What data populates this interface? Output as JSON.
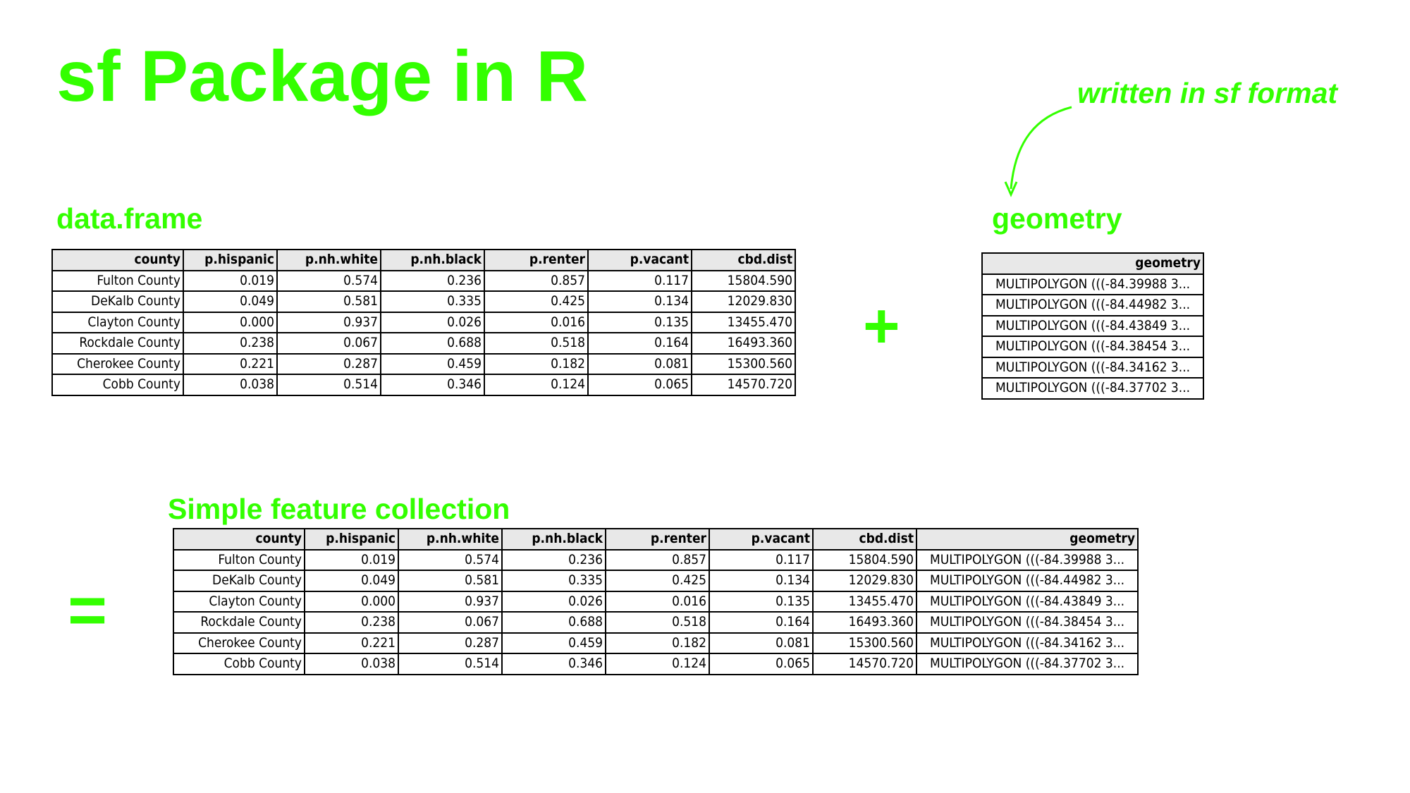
{
  "slide": {
    "title": "sf Package in R",
    "note": "written in sf format",
    "plus": "+",
    "equals": "=",
    "labels": {
      "dataframe": "data.frame",
      "geometry": "geometry",
      "sfc": "Simple feature collection"
    }
  },
  "columns": [
    "county",
    "p.hispanic",
    "p.nh.white",
    "p.nh.black",
    "p.renter",
    "p.vacant",
    "cbd.dist"
  ],
  "geometry_header": "geometry",
  "rows": [
    {
      "county": "Fulton County",
      "p_hispanic": "0.019",
      "p_nh_white": "0.574",
      "p_nh_black": "0.236",
      "p_renter": "0.857",
      "p_vacant": "0.117",
      "cbd_dist": "15804.590",
      "geometry": "MULTIPOLYGON (((-84.39988 3..."
    },
    {
      "county": "DeKalb County",
      "p_hispanic": "0.049",
      "p_nh_white": "0.581",
      "p_nh_black": "0.335",
      "p_renter": "0.425",
      "p_vacant": "0.134",
      "cbd_dist": "12029.830",
      "geometry": "MULTIPOLYGON (((-84.44982 3..."
    },
    {
      "county": "Clayton County",
      "p_hispanic": "0.000",
      "p_nh_white": "0.937",
      "p_nh_black": "0.026",
      "p_renter": "0.016",
      "p_vacant": "0.135",
      "cbd_dist": "13455.470",
      "geometry": "MULTIPOLYGON (((-84.43849 3..."
    },
    {
      "county": "Rockdale County",
      "p_hispanic": "0.238",
      "p_nh_white": "0.067",
      "p_nh_black": "0.688",
      "p_renter": "0.518",
      "p_vacant": "0.164",
      "cbd_dist": "16493.360",
      "geometry": "MULTIPOLYGON (((-84.38454 3..."
    },
    {
      "county": "Cherokee County",
      "p_hispanic": "0.221",
      "p_nh_white": "0.287",
      "p_nh_black": "0.459",
      "p_renter": "0.182",
      "p_vacant": "0.081",
      "cbd_dist": "15300.560",
      "geometry": "MULTIPOLYGON (((-84.34162 3..."
    },
    {
      "county": "Cobb County",
      "p_hispanic": "0.038",
      "p_nh_white": "0.514",
      "p_nh_black": "0.346",
      "p_renter": "0.124",
      "p_vacant": "0.065",
      "cbd_dist": "14570.720",
      "geometry": "MULTIPOLYGON (((-84.37702 3..."
    }
  ],
  "colors": {
    "accent": "#33ff00",
    "header_bg": "#e8e8e8"
  }
}
